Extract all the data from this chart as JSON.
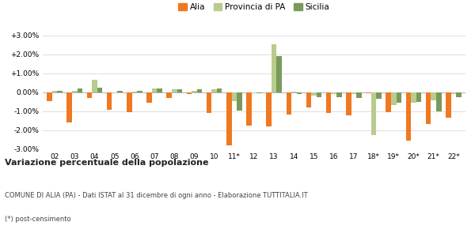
{
  "years": [
    "02",
    "03",
    "04",
    "05",
    "06",
    "07",
    "08",
    "09",
    "10",
    "11*",
    "12",
    "13",
    "14",
    "15",
    "16",
    "17",
    "18*",
    "19*",
    "20*",
    "21*",
    "22*"
  ],
  "alia": [
    -0.45,
    -1.6,
    -0.3,
    -0.9,
    -1.05,
    -0.55,
    -0.3,
    -0.1,
    -1.1,
    -2.8,
    -1.75,
    -1.8,
    -1.15,
    -0.8,
    -1.1,
    -1.2,
    -0.05,
    -1.05,
    -2.55,
    -1.65,
    -1.35
  ],
  "provincia": [
    0.1,
    0.1,
    0.65,
    -0.05,
    0.05,
    0.2,
    0.15,
    0.1,
    0.15,
    -0.45,
    -0.05,
    2.55,
    0.05,
    -0.15,
    -0.1,
    -0.1,
    -2.25,
    -0.65,
    -0.55,
    -0.4,
    -0.1
  ],
  "sicilia": [
    0.1,
    0.2,
    0.25,
    0.1,
    0.1,
    0.2,
    0.15,
    0.15,
    0.2,
    -0.95,
    -0.05,
    1.9,
    -0.1,
    -0.25,
    -0.25,
    -0.3,
    -0.35,
    -0.55,
    -0.5,
    -1.0,
    -0.25
  ],
  "alia_color": "#f07820",
  "provincia_color": "#b8cc8e",
  "sicilia_color": "#7a9a5b",
  "bg_color": "#ffffff",
  "grid_color": "#dddddd",
  "ylim": [
    -3.0,
    3.0
  ],
  "yticks": [
    -3.0,
    -2.0,
    -1.0,
    0.0,
    1.0,
    2.0,
    3.0
  ],
  "ytick_labels": [
    "-3.00%",
    "-2.00%",
    "-1.00%",
    "0.00%",
    "+1.00%",
    "+2.00%",
    "+3.00%"
  ],
  "title": "Variazione percentuale della popolazione",
  "subtitle1": "COMUNE DI ALIA (PA) - Dati ISTAT al 31 dicembre di ogni anno - Elaborazione TUTTITALIA.IT",
  "subtitle2": "(*) post-censimento",
  "legend_labels": [
    "Alia",
    "Provincia di PA",
    "Sicilia"
  ]
}
